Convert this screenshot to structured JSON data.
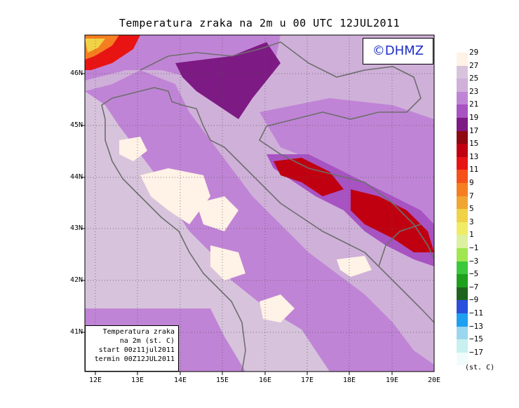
{
  "title": "Temperatura zraka na 2m u 00 UTC 12JUL2011",
  "logo": "©DHMZ",
  "info_box": [
    "Temperatura zraka",
    "na 2m (st. C)",
    "start 00z11jul2011",
    "termin 00Z12JUL2011"
  ],
  "lat_labels": [
    "46N",
    "45N",
    "44N",
    "43N",
    "42N",
    "41N"
  ],
  "lon_labels": [
    "12E",
    "13E",
    "14E",
    "15E",
    "16E",
    "17E",
    "18E",
    "19E",
    "20E"
  ],
  "legend": {
    "labels": [
      "29",
      "27",
      "25",
      "23",
      "21",
      "19",
      "17",
      "15",
      "13",
      "11",
      "9",
      "7",
      "5",
      "3",
      "1",
      "−1",
      "−3",
      "−5",
      "−7",
      "−9",
      "−11",
      "−13",
      "−15",
      "−17"
    ],
    "colors": [
      "#fff2e6",
      "#d7c4dc",
      "#cfb0d9",
      "#c084d6",
      "#a853c2",
      "#7e1a84",
      "#8c0a10",
      "#c00010",
      "#e81414",
      "#f5501a",
      "#f57e20",
      "#f0a532",
      "#f0d246",
      "#f0ec64",
      "#dcf0a0",
      "#a0e650",
      "#3cc83c",
      "#1ea01e",
      "#1e641e",
      "#2850dc",
      "#1ea0f0",
      "#9ad7ee",
      "#c8f0f0",
      "#f0fcfc"
    ],
    "unit": "(st. C)"
  },
  "colors": {
    "sea": "#d7c4dc",
    "land_mild": "#c084d6",
    "warm_land": "#cfb0d9",
    "hot_spot": "#fff2e6",
    "cool": "#a853c2",
    "cold": "#7e1a84",
    "coldest": "#c00010",
    "coastline": "#6e6e6e"
  }
}
